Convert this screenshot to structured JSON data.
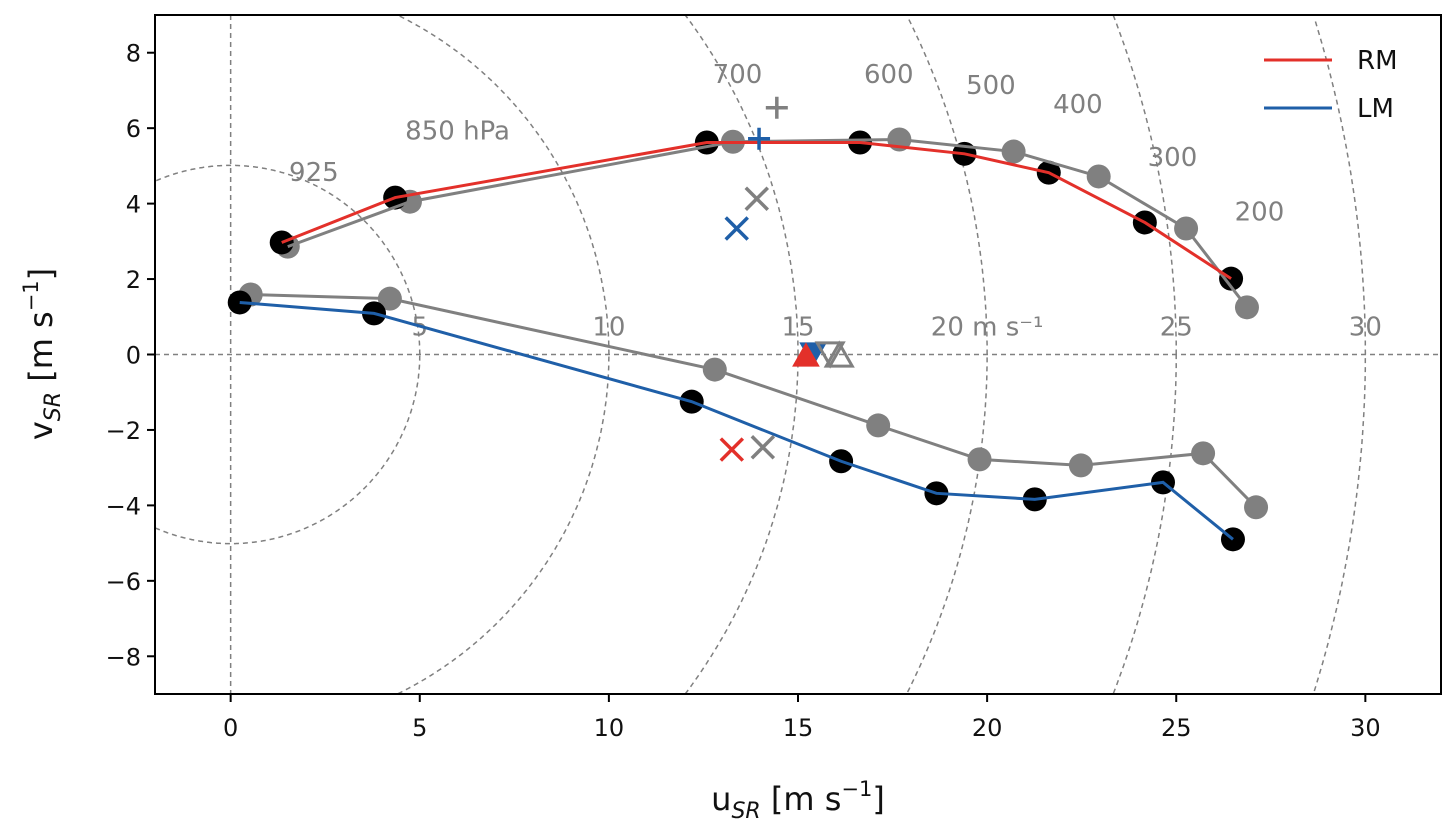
{
  "chart_data": {
    "type": "line",
    "title": "",
    "xlabel": "u",
    "xlabel_sub": "SR",
    "xlabel_units": " [m s",
    "xlabel_exp": "−1",
    "xlabel_close": "]",
    "ylabel": "v",
    "ylabel_sub": "SR",
    "ylabel_units": " [m s",
    "ylabel_exp": "−1",
    "ylabel_close": "]",
    "xlim": [
      -2,
      32
    ],
    "ylim": [
      -9,
      9
    ],
    "xticks": [
      "0",
      "5",
      "10",
      "15",
      "20",
      "25",
      "30"
    ],
    "xtick_values": [
      0,
      5,
      10,
      15,
      20,
      25,
      30
    ],
    "yticks": [
      "−8",
      "−6",
      "−4",
      "−2",
      "0",
      "2",
      "4",
      "6",
      "8"
    ],
    "ytick_values": [
      -8,
      -6,
      -4,
      -2,
      0,
      2,
      4,
      6,
      8
    ],
    "ring_radii": [
      5,
      10,
      15,
      20,
      25,
      30
    ],
    "ring_labels": [
      "5",
      "10",
      "15",
      "20 m s⁻¹",
      "25",
      "30"
    ],
    "pressure_labels": [
      {
        "text": "925",
        "x": 2.2,
        "y": 4.6
      },
      {
        "text": "850 hPa",
        "x": 6.0,
        "y": 5.7
      },
      {
        "text": "700",
        "x": 13.4,
        "y": 7.2
      },
      {
        "text": "600",
        "x": 17.4,
        "y": 7.2
      },
      {
        "text": "500",
        "x": 20.1,
        "y": 6.9
      },
      {
        "text": "400",
        "x": 22.4,
        "y": 6.4
      },
      {
        "text": "300",
        "x": 24.9,
        "y": 5.0
      },
      {
        "text": "200",
        "x": 27.2,
        "y": 3.55
      }
    ],
    "legend": {
      "placement": "top-right",
      "entries": [
        {
          "label": "RM",
          "color": "#e3302a"
        },
        {
          "label": "LM",
          "color": "#1f5fa8"
        }
      ]
    },
    "series": [
      {
        "name": "RM",
        "color": "#e3302a",
        "marker_color": "#000000",
        "x": [
          1.35,
          4.35,
          12.59,
          16.64,
          19.4,
          21.63,
          24.17,
          26.45
        ],
        "y": [
          2.97,
          4.16,
          5.62,
          5.62,
          5.32,
          4.82,
          3.5,
          2.01
        ]
      },
      {
        "name": "RM (gray)",
        "color": "#808080",
        "marker_color": "#808080",
        "x": [
          1.51,
          4.74,
          13.28,
          17.68,
          20.7,
          22.95,
          25.26,
          26.87
        ],
        "y": [
          2.86,
          4.05,
          5.64,
          5.7,
          5.38,
          4.72,
          3.34,
          1.25
        ]
      },
      {
        "name": "LM",
        "color": "#1f5fa8",
        "marker_color": "#000000",
        "x": [
          0.24,
          3.79,
          12.19,
          16.14,
          18.66,
          21.26,
          24.65,
          26.5
        ],
        "y": [
          1.38,
          1.09,
          -1.25,
          -2.83,
          -3.68,
          -3.84,
          -3.39,
          -4.9
        ]
      },
      {
        "name": "LM (gray)",
        "color": "#808080",
        "marker_color": "#808080",
        "x": [
          0.53,
          4.21,
          12.8,
          17.12,
          19.8,
          22.48,
          25.71,
          27.11
        ],
        "y": [
          1.59,
          1.48,
          -0.4,
          -1.88,
          -2.78,
          -2.94,
          -2.62,
          -4.05
        ]
      }
    ],
    "markers": [
      {
        "type": "plus",
        "color": "#1f5fa8",
        "x": 13.97,
        "y": 5.72
      },
      {
        "type": "plus",
        "color": "#808080",
        "x": 14.44,
        "y": 6.54
      },
      {
        "type": "x",
        "color": "#808080",
        "x": 13.91,
        "y": 4.13
      },
      {
        "type": "x",
        "color": "#1f5fa8",
        "x": 13.38,
        "y": 3.34
      },
      {
        "type": "x",
        "color": "#e3302a",
        "x": 13.25,
        "y": -2.52
      },
      {
        "type": "x",
        "color": "#808080",
        "x": 14.07,
        "y": -2.46
      },
      {
        "type": "tri-down",
        "color": "#1f5fa8",
        "x": 15.4,
        "y": 0.05
      },
      {
        "type": "tri-up",
        "color": "#e3302a",
        "x": 15.21,
        "y": -0.05
      },
      {
        "type": "tri-down-open",
        "color": "#808080",
        "x": 15.85,
        "y": 0.05
      },
      {
        "type": "tri-up-open",
        "color": "#808080",
        "x": 16.09,
        "y": -0.05
      }
    ]
  }
}
